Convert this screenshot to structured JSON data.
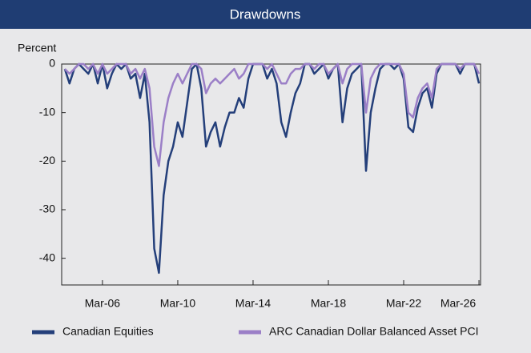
{
  "chart_data": {
    "type": "line",
    "title": "Drawdowns",
    "y_label": "Percent",
    "x": [
      "Mar-04",
      "Jun-04",
      "Sep-04",
      "Dec-04",
      "Mar-05",
      "Jun-05",
      "Sep-05",
      "Dec-05",
      "Mar-06",
      "Jun-06",
      "Sep-06",
      "Dec-06",
      "Mar-07",
      "Jun-07",
      "Sep-07",
      "Dec-07",
      "Mar-08",
      "Jun-08",
      "Sep-08",
      "Dec-08",
      "Mar-09",
      "Jun-09",
      "Sep-09",
      "Dec-09",
      "Mar-10",
      "Jun-10",
      "Sep-10",
      "Dec-10",
      "Mar-11",
      "Jun-11",
      "Sep-11",
      "Dec-11",
      "Mar-12",
      "Jun-12",
      "Sep-12",
      "Dec-12",
      "Mar-13",
      "Jun-13",
      "Sep-13",
      "Dec-13",
      "Mar-14",
      "Jun-14",
      "Sep-14",
      "Dec-14",
      "Mar-15",
      "Jun-15",
      "Sep-15",
      "Dec-15",
      "Mar-16",
      "Jun-16",
      "Sep-16",
      "Dec-16",
      "Mar-17",
      "Jun-17",
      "Sep-17",
      "Dec-17",
      "Mar-18",
      "Jun-18",
      "Sep-18",
      "Dec-18",
      "Mar-19",
      "Jun-19",
      "Sep-19",
      "Dec-19",
      "Mar-20",
      "Jun-20",
      "Sep-20",
      "Dec-20",
      "Mar-21",
      "Jun-21",
      "Sep-21",
      "Dec-21",
      "Mar-22",
      "Jun-22",
      "Sep-22",
      "Dec-22",
      "Mar-23",
      "Jun-23",
      "Sep-23",
      "Dec-23",
      "Mar-24",
      "Jun-24",
      "Sep-24",
      "Dec-24",
      "Mar-25",
      "Jun-25",
      "Sep-25",
      "Dec-25",
      "Mar-26"
    ],
    "series": [
      {
        "name": "Canadian Equities",
        "color": "#243f7a",
        "values": [
          -1,
          -4,
          -1,
          0,
          -1,
          -2,
          0,
          -4,
          0,
          -5,
          -2,
          0,
          -1,
          0,
          -3,
          -2,
          -7,
          -2,
          -12,
          -38,
          -43,
          -27,
          -20,
          -17,
          -12,
          -15,
          -8,
          -1,
          0,
          -5,
          -17,
          -14,
          -12,
          -17,
          -13,
          -10,
          -10,
          -7,
          -9,
          -3,
          0,
          0,
          0,
          -3,
          -1,
          -4,
          -12,
          -15,
          -10,
          -6,
          -4,
          0,
          0,
          -2,
          -1,
          0,
          -3,
          -1,
          0,
          -12,
          -5,
          -2,
          -1,
          0,
          -22,
          -10,
          -5,
          -1,
          0,
          0,
          -1,
          0,
          -3,
          -13,
          -14,
          -9,
          -6,
          -5,
          -9,
          -2,
          0,
          0,
          0,
          0,
          -2,
          0,
          0,
          0,
          -4
        ]
      },
      {
        "name": "ARC Canadian Dollar Balanced Asset PCI",
        "color": "#9b7fc7",
        "values": [
          -1,
          -2,
          -1,
          0,
          0,
          -1,
          0,
          -2,
          0,
          -2,
          -1,
          0,
          0,
          0,
          -2,
          -1,
          -3,
          -1,
          -5,
          -17,
          -21,
          -12,
          -7,
          -4,
          -2,
          -4,
          -2,
          0,
          0,
          -1,
          -6,
          -4,
          -3,
          -4,
          -3,
          -2,
          -1,
          -3,
          -2,
          0,
          0,
          0,
          0,
          -1,
          0,
          -2,
          -4,
          -4,
          -2,
          -1,
          -1,
          0,
          0,
          -1,
          0,
          0,
          -2,
          -1,
          0,
          -4,
          -1,
          0,
          0,
          0,
          -10,
          -3,
          -1,
          0,
          0,
          0,
          0,
          0,
          -2,
          -10,
          -11,
          -7,
          -5,
          -4,
          -7,
          -1,
          0,
          0,
          0,
          0,
          -1,
          0,
          0,
          0,
          -2
        ]
      }
    ],
    "xlim": [
      "Jan-04",
      "Apr-26"
    ],
    "xticks": [
      "Mar-06",
      "Mar-10",
      "Mar-14",
      "Mar-18",
      "Mar-22",
      "Mar-26"
    ],
    "ylim": [
      -45.5,
      0
    ],
    "yticks": [
      0,
      -10,
      -20,
      -30,
      -40
    ]
  }
}
